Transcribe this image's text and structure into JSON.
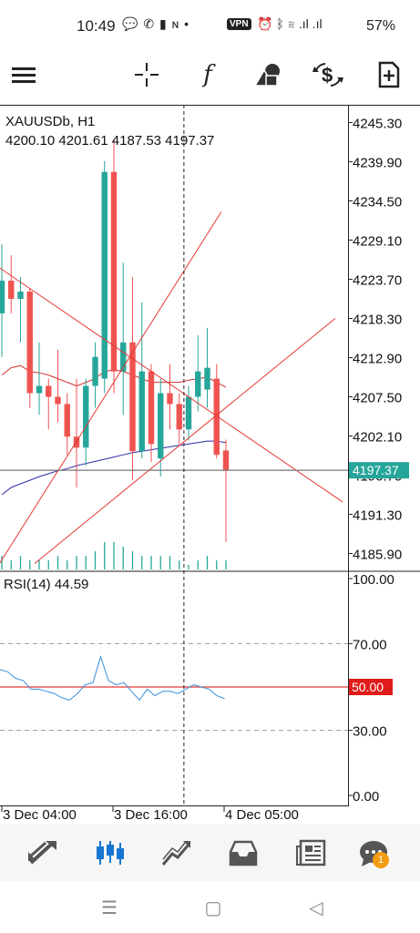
{
  "status_bar": {
    "time": "10:49",
    "notif_icons": "💬 ✆ ▮ ɴ •",
    "vpn": "VPN",
    "right_icons": "⏰ ᛒ ≋ .ıl .ıl",
    "battery": "57%"
  },
  "toolbar": {
    "menu_icon": "menu-icon",
    "crosshair_icon": "crosshair-icon",
    "indicators_label": "f",
    "objects_icon": "shapes-icon",
    "trade_icon": "dollar-exchange-icon",
    "new_chart_icon": "new-file-icon"
  },
  "chart_data": [
    {
      "type": "candlestick",
      "symbol": "XAUUSDb, H1",
      "ohlc_header": "4200.10 4201.61 4187.53 4197.37",
      "y_ticks": [
        "4245.30",
        "4239.90",
        "4234.50",
        "4229.10",
        "4223.70",
        "4218.30",
        "4212.90",
        "4207.50",
        "4202.10",
        "4196.70",
        "4191.30",
        "4185.90"
      ],
      "ylim": [
        4183.7,
        4247.5
      ],
      "current_price": "4197.37",
      "colors": {
        "up": "#26a69a",
        "down": "#ef5350",
        "ma_red": "#d32f2f",
        "ma_blue": "#2c2ca8",
        "trend": "#e53935",
        "bid_line": "#777777"
      },
      "candles": [
        {
          "o": 4219.0,
          "h": 4228.5,
          "l": 4213.0,
          "c": 4223.5
        },
        {
          "o": 4223.5,
          "h": 4227.0,
          "l": 4219.0,
          "c": 4221.0
        },
        {
          "o": 4221.0,
          "h": 4224.0,
          "l": 4215.0,
          "c": 4222.0
        },
        {
          "o": 4222.0,
          "h": 4222.5,
          "l": 4206.0,
          "c": 4208.0
        },
        {
          "o": 4208.0,
          "h": 4215.0,
          "l": 4205.0,
          "c": 4209.0
        },
        {
          "o": 4209.0,
          "h": 4210.0,
          "l": 4203.0,
          "c": 4207.5
        },
        {
          "o": 4207.5,
          "h": 4214.0,
          "l": 4204.0,
          "c": 4206.5
        },
        {
          "o": 4206.5,
          "h": 4208.0,
          "l": 4199.5,
          "c": 4202.0
        },
        {
          "o": 4202.0,
          "h": 4210.0,
          "l": 4195.0,
          "c": 4200.5
        },
        {
          "o": 4200.5,
          "h": 4210.0,
          "l": 4198.0,
          "c": 4209.0
        },
        {
          "o": 4209.0,
          "h": 4215.0,
          "l": 4206.0,
          "c": 4213.0
        },
        {
          "o": 4210.0,
          "h": 4240.0,
          "l": 4208.0,
          "c": 4238.5
        },
        {
          "o": 4238.5,
          "h": 4243.0,
          "l": 4208.0,
          "c": 4211.0
        },
        {
          "o": 4211.0,
          "h": 4226.0,
          "l": 4205.0,
          "c": 4215.0
        },
        {
          "o": 4215.0,
          "h": 4224.0,
          "l": 4196.0,
          "c": 4200.0
        },
        {
          "o": 4200.0,
          "h": 4220.5,
          "l": 4199.0,
          "c": 4211.0
        },
        {
          "o": 4211.0,
          "h": 4212.0,
          "l": 4198.5,
          "c": 4201.0
        },
        {
          "o": 4199.0,
          "h": 4210.0,
          "l": 4196.5,
          "c": 4208.0
        },
        {
          "o": 4208.0,
          "h": 4212.0,
          "l": 4203.0,
          "c": 4206.5
        },
        {
          "o": 4206.5,
          "h": 4208.0,
          "l": 4201.0,
          "c": 4203.0
        },
        {
          "o": 4203.0,
          "h": 4209.0,
          "l": 4201.5,
          "c": 4207.5
        },
        {
          "o": 4207.5,
          "h": 4216.0,
          "l": 4205.5,
          "c": 4211.0
        },
        {
          "o": 4208.5,
          "h": 4217.0,
          "l": 4206.0,
          "c": 4211.5
        },
        {
          "o": 4210.0,
          "h": 4212.0,
          "l": 4199.0,
          "c": 4199.5
        },
        {
          "o": 4200.1,
          "h": 4201.6,
          "l": 4187.5,
          "c": 4197.4
        }
      ],
      "volumes": [
        3,
        2,
        3,
        2,
        2,
        2,
        3,
        2,
        3,
        3,
        4,
        6,
        6,
        5,
        4,
        3,
        3,
        3,
        3,
        2,
        1,
        2,
        3,
        2,
        2
      ],
      "ma_red": [
        4210.5,
        4211.5,
        4211.8,
        4211.0,
        4210.8,
        4210.5,
        4210.0,
        4209.5,
        4209.0,
        4209.5,
        4210.0,
        4211.0,
        4211.2,
        4211.0,
        4210.5,
        4210.0,
        4209.5,
        4209.5,
        4209.5,
        4209.5,
        4209.8,
        4210.0,
        4210.2,
        4209.5,
        4208.8
      ],
      "ma_blue": [
        4194.0,
        4195.0,
        4195.5,
        4196.0,
        4196.5,
        4196.9,
        4197.3,
        4197.6,
        4198.0,
        4198.3,
        4198.6,
        4198.9,
        4199.2,
        4199.5,
        4199.8,
        4200.0,
        4200.2,
        4200.4,
        4200.6,
        4200.8,
        4201.0,
        4201.2,
        4201.4,
        4201.4,
        4201.2
      ],
      "trendlines": [
        {
          "from": [
            -0.5,
            4225.5
          ],
          "to": [
            36.5,
            4193.0
          ]
        },
        {
          "from": [
            -0.5,
            4184.0
          ],
          "to": [
            23.5,
            4233.0
          ]
        },
        {
          "from": [
            3.5,
            4184.5
          ],
          "to": [
            35.7,
            4218.3
          ]
        }
      ],
      "crosshair_index": 19.5
    },
    {
      "type": "line",
      "label": "RSI(14) 44.59",
      "y_ticks": [
        "100.00",
        "70.00",
        "50.00",
        "30.00",
        "0.00"
      ],
      "ylim": [
        0,
        100
      ],
      "levels": [
        70,
        30
      ],
      "highlight_level": "50.00",
      "values": [
        58,
        57,
        54,
        53,
        49,
        49,
        48,
        47,
        45,
        44,
        47,
        51,
        52,
        64,
        53,
        51,
        52,
        48,
        44,
        49,
        46,
        48,
        48,
        47,
        49,
        51,
        50,
        49,
        46,
        44.59
      ],
      "x_tick_labels": [
        "3 Dec 04:00",
        "3 Dec 16:00",
        "4 Dec 05:00"
      ]
    }
  ],
  "bottom_nav": {
    "items": [
      "quotes-icon",
      "chart-icon",
      "trade-icon",
      "history-icon",
      "news-icon",
      "messages-icon"
    ],
    "badge": "1"
  },
  "system_nav": {
    "recents": "☰",
    "home": "▢",
    "back": "◁"
  }
}
